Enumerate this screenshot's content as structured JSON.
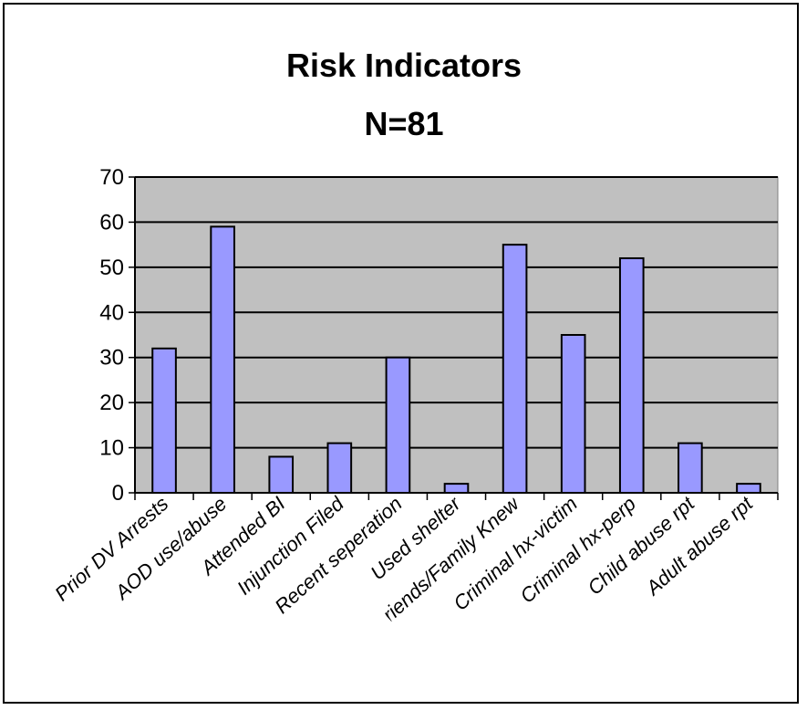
{
  "chart_data": {
    "type": "bar",
    "title": "Risk Indicators",
    "subtitle": "N=81",
    "categories": [
      "Prior DV Arrests",
      "AOD use/abuse",
      "Attended BI",
      "Injunction Filed",
      "Recent seperation",
      "Used shelter",
      "Friends/Family Knew",
      "Criminal hx-victim",
      "Criminal hx-perp",
      "Child abuse rpt",
      "Adult abuse rpt"
    ],
    "values": [
      32,
      59,
      8,
      11,
      30,
      2,
      55,
      35,
      52,
      11,
      2
    ],
    "ylim": [
      0,
      70
    ],
    "yticks": [
      0,
      10,
      20,
      30,
      40,
      50,
      60,
      70
    ],
    "grid": true,
    "legend": "none",
    "colors": {
      "plot_background": "#c0c0c0",
      "bar_fill": "#9999ff",
      "bar_stroke": "#000000",
      "gridline": "#000000"
    }
  }
}
